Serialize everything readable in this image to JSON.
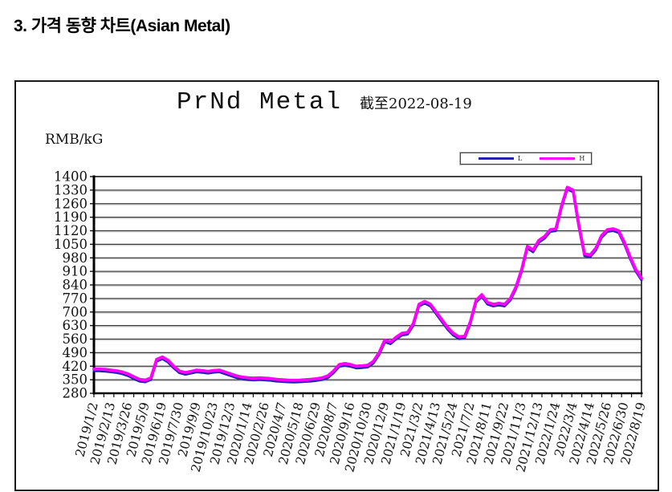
{
  "page": {
    "heading": "3. 가격 동향 차트(Asian Metal)"
  },
  "chart": {
    "title": "PrNd Metal",
    "subtitle": "截至2022-08-19",
    "unit_label": "RMB/kG",
    "legend": [
      {
        "label": "L",
        "color": "#2222b2"
      },
      {
        "label": "H",
        "color": "#ff00ff"
      }
    ]
  },
  "chart_data": {
    "type": "line",
    "title": "PrNd Metal",
    "subtitle": "截至2022-08-19",
    "ylabel": "RMB/kG",
    "ylim": [
      280,
      1400
    ],
    "yticks": [
      1400,
      1330,
      1260,
      1190,
      1120,
      1050,
      980,
      910,
      840,
      770,
      700,
      630,
      560,
      490,
      420,
      350,
      280
    ],
    "grid": "horizontal",
    "legend_position": "top-right",
    "x_tick_labels": [
      "2019/1/2",
      "2019/2/13",
      "2019/3/26",
      "2019/5/9",
      "2019/6/19",
      "2019/7/30",
      "2019/9/9",
      "2019/10/23",
      "2019/12/3",
      "2020/1/14",
      "2020/2/26",
      "2020/4/7",
      "2020/5/18",
      "2020/6/29",
      "2020/8/7",
      "2020/9/16",
      "2020/10/30",
      "2020/12/9",
      "2021/1/19",
      "2021/3/2",
      "2021/4/13",
      "2021/5/24",
      "2021/7/2",
      "2021/8/11",
      "2021/9/22",
      "2021/11/3",
      "2021/12/13",
      "2022/1/24",
      "2022/3/4",
      "2022/4/14",
      "2022/5/26",
      "2022/6/30",
      "2022/8/19"
    ],
    "series": [
      {
        "name": "L",
        "color": "#2222b2",
        "values": [
          395,
          395,
          393,
          390,
          386,
          380,
          370,
          355,
          342,
          338,
          350,
          445,
          458,
          440,
          410,
          385,
          377,
          383,
          390,
          387,
          383,
          388,
          390,
          380,
          370,
          360,
          354,
          350,
          348,
          350,
          348,
          346,
          342,
          340,
          338,
          337,
          338,
          340,
          342,
          345,
          350,
          360,
          385,
          418,
          424,
          418,
          410,
          412,
          415,
          435,
          480,
          545,
          535,
          560,
          580,
          585,
          630,
          730,
          745,
          730,
          690,
          650,
          610,
          580,
          562,
          565,
          640,
          750,
          780,
          740,
          730,
          735,
          730,
          760,
          820,
          910,
          1030,
          1010,
          1060,
          1080,
          1115,
          1120,
          1240,
          1335,
          1320,
          1140,
          990,
          985,
          1020,
          1085,
          1115,
          1120,
          1110,
          1050,
          975,
          910,
          865
        ]
      },
      {
        "name": "H",
        "color": "#ff00ff",
        "values": [
          405,
          405,
          403,
          400,
          396,
          390,
          380,
          365,
          352,
          348,
          360,
          455,
          468,
          450,
          420,
          395,
          387,
          393,
          400,
          397,
          393,
          398,
          400,
          390,
          380,
          370,
          364,
          360,
          358,
          360,
          358,
          356,
          352,
          350,
          348,
          347,
          348,
          350,
          352,
          355,
          360,
          370,
          395,
          428,
          434,
          428,
          420,
          422,
          425,
          445,
          490,
          555,
          545,
          570,
          590,
          595,
          640,
          740,
          755,
          740,
          700,
          660,
          620,
          590,
          572,
          575,
          650,
          760,
          790,
          750,
          740,
          745,
          740,
          770,
          830,
          920,
          1040,
          1020,
          1070,
          1090,
          1125,
          1130,
          1250,
          1345,
          1330,
          1150,
          1000,
          995,
          1030,
          1095,
          1125,
          1130,
          1120,
          1060,
          985,
          920,
          875
        ]
      }
    ]
  }
}
